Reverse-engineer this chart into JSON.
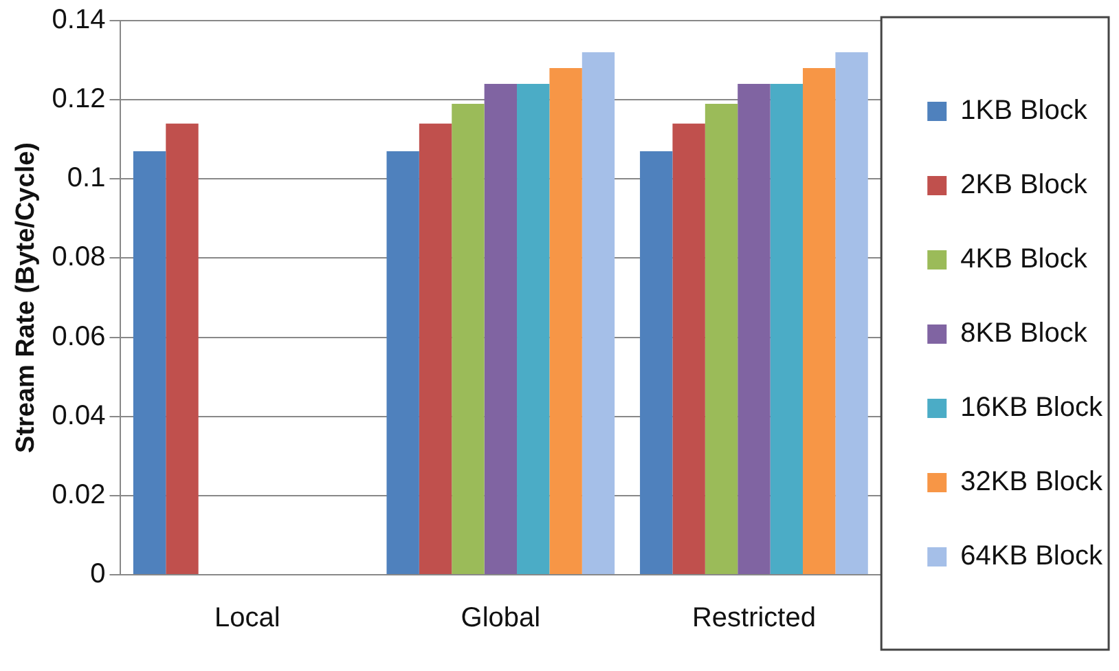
{
  "chart_data": {
    "type": "bar",
    "ylabel": "Stream Rate (Byte/Cycle)",
    "categories": [
      "Local",
      "Global",
      "Restricted"
    ],
    "series": [
      {
        "name": "1KB Block",
        "color": "#4f81bd",
        "values": [
          0.107,
          0.107,
          0.107
        ]
      },
      {
        "name": "2KB Block",
        "color": "#c0504d",
        "values": [
          0.114,
          0.114,
          0.114
        ]
      },
      {
        "name": "4KB Block",
        "color": "#9bbb59",
        "values": [
          null,
          0.119,
          0.119
        ]
      },
      {
        "name": "8KB Block",
        "color": "#8064a2",
        "values": [
          null,
          0.124,
          0.124
        ]
      },
      {
        "name": "16KB Block",
        "color": "#4bacc6",
        "values": [
          null,
          0.124,
          0.124
        ]
      },
      {
        "name": "32KB Block",
        "color": "#f79646",
        "values": [
          null,
          0.128,
          0.128
        ]
      },
      {
        "name": "64KB Block",
        "color": "#a5bfe8",
        "values": [
          null,
          0.132,
          0.132
        ]
      }
    ],
    "ylim": [
      0,
      0.14
    ],
    "yticks": [
      0,
      0.02,
      0.04,
      0.06,
      0.08,
      0.1,
      0.12,
      0.14
    ],
    "grid": "y",
    "legend": "right"
  }
}
